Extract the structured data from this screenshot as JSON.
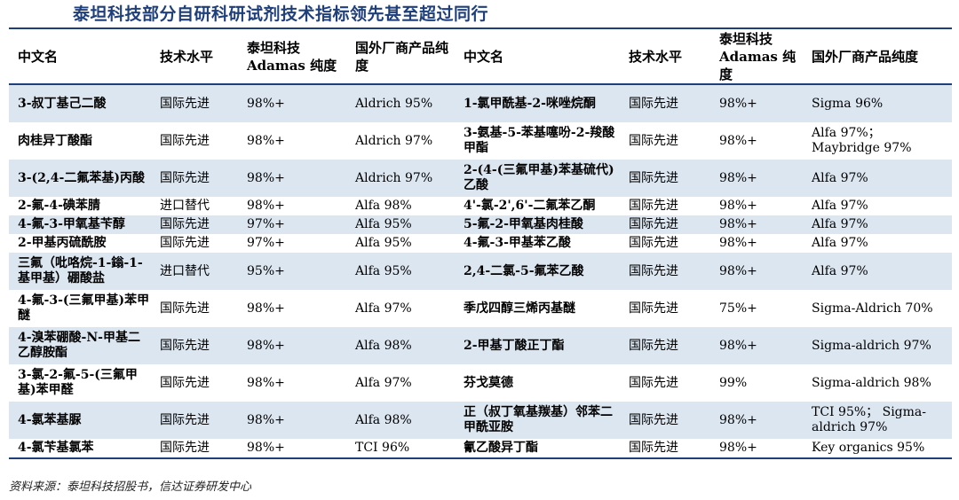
{
  "title": "泰坦科技部分自研科研试剂技术指标领先甚至超过同行",
  "headers": [
    "中文名",
    "技术水平",
    "泰坦科技 Adamas 纯度",
    "国外厂商产品纯度",
    "中文名",
    "技术水平",
    "泰坦科技 Adamas 纯度",
    "国外厂商产品纯度"
  ],
  "rows": [
    [
      "3-叔丁基己二酸",
      "国际先进",
      "98%+",
      "Aldrich 95%",
      "1-氯甲酰基-2-咪唑烷酮",
      "国际先进",
      "98%+",
      "Sigma 96%"
    ],
    [
      "肉桂异丁酸酯",
      "国际先进",
      "98%+",
      "Aldrich 97%",
      "3-氨基-5-苯基噻吩-2-羧酸甲酯",
      "国际先进",
      "98%+",
      "Alfa 97%； Maybridge 97%"
    ],
    [
      "3-(2,4-二氟苯基)丙酸",
      "国际先进",
      "98%+",
      "Aldrich 97%",
      "2-(4-(三氟甲基)苯基硫代)乙酸",
      "国际先进",
      "98%+",
      "Alfa 97%"
    ],
    [
      "2-氟-4-碘苯腈",
      "进口替代",
      "98%+",
      "Alfa 98%",
      "4'-氯-2',6'-二氟苯乙酮",
      "国际先进",
      "98%+",
      "Alfa 97%"
    ],
    [
      "4-氟-3-甲氧基苄醇",
      "国际先进",
      "97%+",
      "Alfa 95%",
      "5-氟-2-甲氧基肉桂酸",
      "国际先进",
      "98%+",
      "Alfa 97%"
    ],
    [
      "2-甲基丙硫酰胺",
      "国际先进",
      "97%+",
      "Alfa 95%",
      "4-氟-3-甲基苯乙酸",
      "国际先进",
      "98%+",
      "Alfa 97%"
    ],
    [
      "三氟（吡咯烷-1-鎓-1-基甲基）硼酸盐",
      "进口替代",
      "95%+",
      "Alfa 95%",
      "2,4-二氯-5-氟苯乙酸",
      "国际先进",
      "98%+",
      "Alfa 97%"
    ],
    [
      "4-氟-3-(三氟甲基)苯甲醚",
      "国际先进",
      "98%+",
      "Alfa 97%",
      "季戊四醇三烯丙基醚",
      "国际先进",
      "75%+",
      "Sigma-Aldrich 70%"
    ],
    [
      "4-溴苯硼酸-N-甲基二乙醇胺酯",
      "国际先进",
      "98%+",
      "Alfa 98%",
      "2-甲基丁酸正丁酯",
      "国际先进",
      "98%+",
      "Sigma-aldrich 97%"
    ],
    [
      "3-氯-2-氟-5-(三氟甲基)苯甲醛",
      "国际先进",
      "98%+",
      "Alfa 97%",
      "芬戈莫德",
      "国际先进",
      "99%",
      "Sigma-aldrich 98%"
    ],
    [
      "4-氯苯基脲",
      "国际先进",
      "98%+",
      "Alfa 98%",
      "正（叔丁氧基羰基）邻苯二甲酰亚胺",
      "国际先进",
      "98%+",
      "TCI 95%； Sigma-aldrich 97%"
    ],
    [
      "4-氯苄基氯苯",
      "国际先进",
      "98%+",
      "TCI 96%",
      "氰乙酸异丁酯",
      "国际先进",
      "98%+",
      "Key organics 95%"
    ]
  ],
  "source": "资料来源：泰坦科技招股书，信达证券研发中心"
}
